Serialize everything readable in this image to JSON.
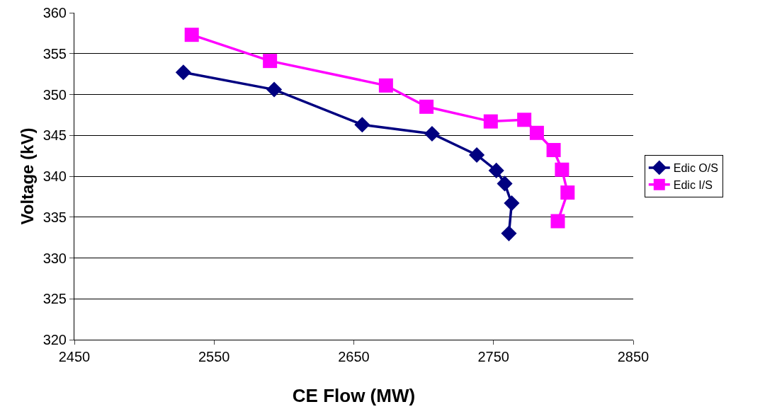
{
  "chart_data": {
    "type": "line",
    "xlabel": "CE Flow (MW)",
    "ylabel": "Voltage (kV)",
    "xlim": [
      2450,
      2850
    ],
    "xticks": [
      2450,
      2550,
      2650,
      2750,
      2850
    ],
    "ylim": [
      320,
      360
    ],
    "yticks": [
      320,
      325,
      330,
      335,
      340,
      345,
      350,
      355,
      360
    ],
    "grid": "y",
    "legend": "right",
    "line_style": "solid",
    "series": [
      {
        "name": "Edic O/S",
        "color": "#000080",
        "marker": "diamond",
        "x": [
          2528,
          2593,
          2656,
          2706,
          2738,
          2752,
          2758,
          2763,
          2761
        ],
        "values": [
          352.7,
          350.6,
          346.3,
          345.2,
          342.6,
          340.7,
          339.1,
          336.7,
          333.0
        ]
      },
      {
        "name": "Edic I/S",
        "color": "#ff00ff",
        "marker": "square",
        "x": [
          2534,
          2590,
          2673,
          2702,
          2748,
          2772,
          2781,
          2793,
          2799,
          2803,
          2796
        ],
        "values": [
          357.3,
          354.1,
          351.1,
          348.5,
          346.7,
          346.9,
          345.3,
          343.2,
          340.8,
          338.0,
          334.5
        ]
      }
    ]
  }
}
